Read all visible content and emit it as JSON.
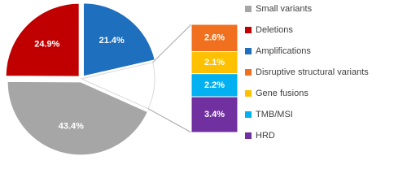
{
  "chart_data": [
    {
      "type": "pie",
      "categories": [
        "Small variants",
        "Deletions",
        "Amplifications"
      ],
      "values": [
        43.4,
        24.9,
        21.4
      ],
      "value_labels": [
        "43.4%",
        "24.9%",
        "21.4%"
      ],
      "colors": [
        "#a6a6a6",
        "#c00000",
        "#1f6fbf"
      ]
    },
    {
      "type": "bar",
      "categories": [
        "Disruptive structural variants",
        "Gene fusions",
        "TMB/MSI",
        "HRD"
      ],
      "values": [
        2.6,
        2.1,
        2.2,
        3.4
      ],
      "value_labels": [
        "2.6%",
        "2.1%",
        "2.2%",
        "3.4%"
      ],
      "colors": [
        "#f07020",
        "#ffc000",
        "#00b0f0",
        "#7030a0"
      ]
    }
  ]
}
